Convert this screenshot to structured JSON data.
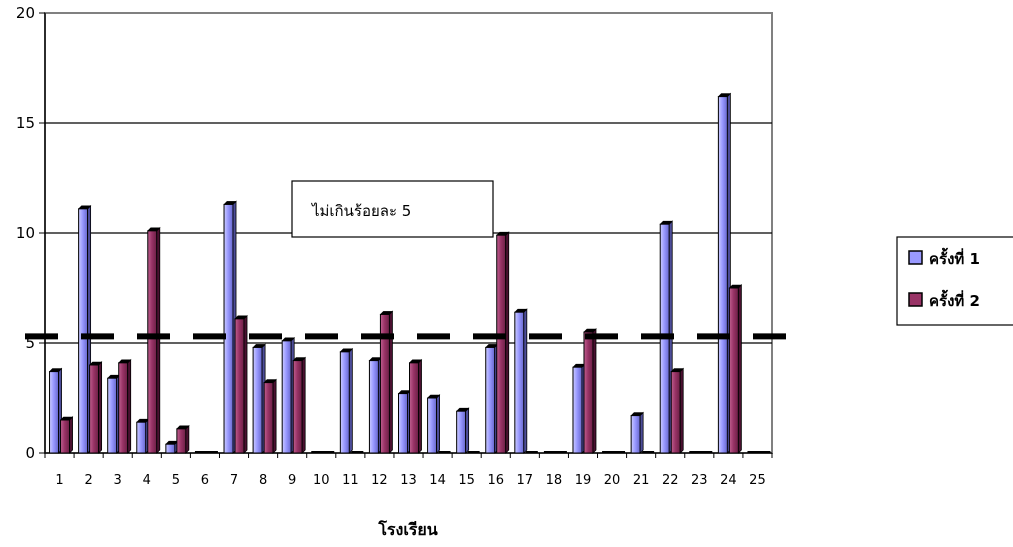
{
  "chart_data": {
    "type": "bar",
    "title": "",
    "xlabel": "โรงเรียน",
    "ylabel": "",
    "ylim": [
      0,
      20
    ],
    "yticks": [
      0,
      5,
      10,
      15,
      20
    ],
    "grid": true,
    "legend_position": "right",
    "categories": [
      "1",
      "2",
      "3",
      "4",
      "5",
      "6",
      "7",
      "8",
      "9",
      "10",
      "11",
      "12",
      "13",
      "14",
      "15",
      "16",
      "17",
      "18",
      "19",
      "20",
      "21",
      "22",
      "23",
      "24",
      "25"
    ],
    "series": [
      {
        "name": "ครั้งที่ 1",
        "color": "#9999ff",
        "values": [
          3.7,
          11.1,
          3.4,
          1.4,
          0.4,
          0,
          11.3,
          4.8,
          5.1,
          0,
          4.6,
          4.2,
          2.7,
          2.5,
          1.9,
          4.8,
          6.4,
          0,
          3.9,
          0,
          1.7,
          10.4,
          0,
          16.2,
          0
        ]
      },
      {
        "name": "ครั้งที่ 2",
        "color": "#993366",
        "values": [
          1.5,
          4.0,
          4.1,
          10.1,
          1.1,
          0,
          6.1,
          3.2,
          4.2,
          0,
          0,
          6.3,
          4.1,
          0,
          0,
          9.9,
          0,
          0,
          5.5,
          0,
          0,
          3.7,
          0,
          7.5,
          0
        ]
      }
    ],
    "reference_line": {
      "value": 5.3,
      "style": "dashed"
    },
    "annotation": "ไม่เกินร้อยละ 5"
  }
}
